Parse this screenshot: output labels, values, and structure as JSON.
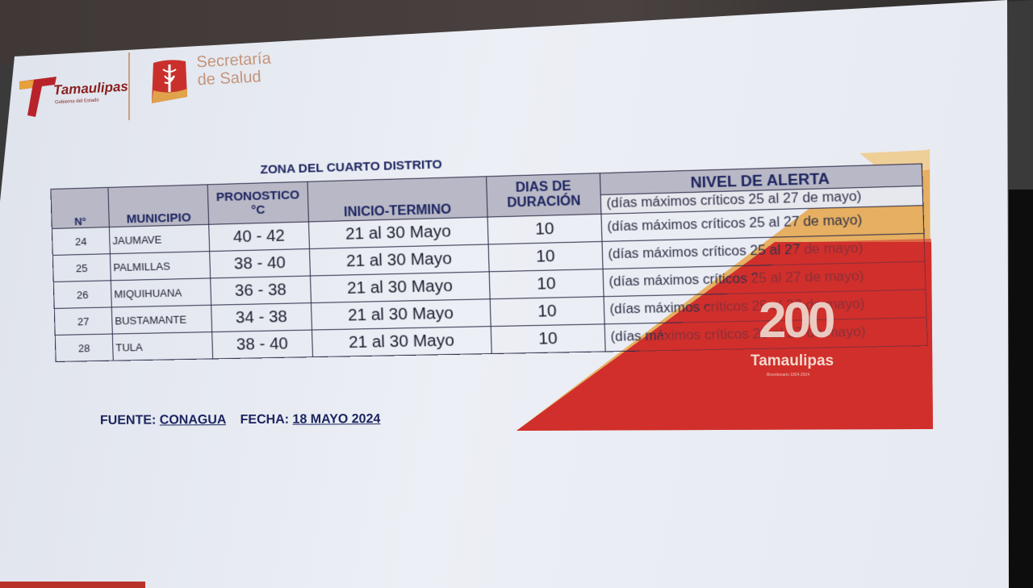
{
  "logos": {
    "tamaulipas_name": "Tamaulipas",
    "tamaulipas_sub": "Gobierno del Estado",
    "secretaria_line1": "Secretaría",
    "secretaria_line2": "de Salud"
  },
  "table": {
    "title": "ZONA  DEL CUARTO DISTRITO",
    "headers": {
      "num": "N°",
      "municipio": "MUNICIPIO",
      "pronostico": "PRONOSTICO",
      "pronostico_unit": "°C",
      "inicio": "INICIO-TERMINO",
      "dias_1": "DIAS DE",
      "dias_2": "DURACIÓN",
      "nivel": "NIVEL DE ALERTA"
    },
    "header_note": "(días máximos críticos 25 al 27 de mayo)",
    "rows": [
      {
        "num": "24",
        "municipio": "JAUMAVE",
        "pronostico": "40 - 42",
        "inicio": "21 al 30 Mayo",
        "dias": "10",
        "nivel": "(días máximos críticos 25 al 27 de mayo)"
      },
      {
        "num": "25",
        "municipio": "PALMILLAS",
        "pronostico": "38 - 40",
        "inicio": "21 al 30 Mayo",
        "dias": "10",
        "nivel": "(días máximos críticos 25 al 27 de mayo)"
      },
      {
        "num": "26",
        "municipio": "MIQUIHUANA",
        "pronostico": "36 - 38",
        "inicio": "21 al 30 Mayo",
        "dias": "10",
        "nivel": "(días máximos críticos 25 al 27 de mayo)"
      },
      {
        "num": "27",
        "municipio": "BUSTAMANTE",
        "pronostico": "34 - 38",
        "inicio": "21 al 30 Mayo",
        "dias": "10",
        "nivel": "(días máximos críticos 25 al 27 de mayo)"
      },
      {
        "num": "28",
        "municipio": "TULA",
        "pronostico": "38 - 40",
        "inicio": "21 al 30 Mayo",
        "dias": "10",
        "nivel": "(días máximos críticos 25 al 27 de mayo)"
      }
    ]
  },
  "source": {
    "fuente_label": "FUENTE:",
    "fuente_value": "CONAGUA",
    "fecha_label": "FECHA:",
    "fecha_value": " 18 MAYO 2024"
  },
  "decoration": {
    "number": "200",
    "word": "Tamaulipas",
    "sub": "Bicentenario 1824-2024"
  },
  "colors": {
    "brand_red": "#c8302a",
    "brand_gold": "#e0a24a",
    "header_gray": "#b9b8c6",
    "text_navy": "#1c2560"
  }
}
